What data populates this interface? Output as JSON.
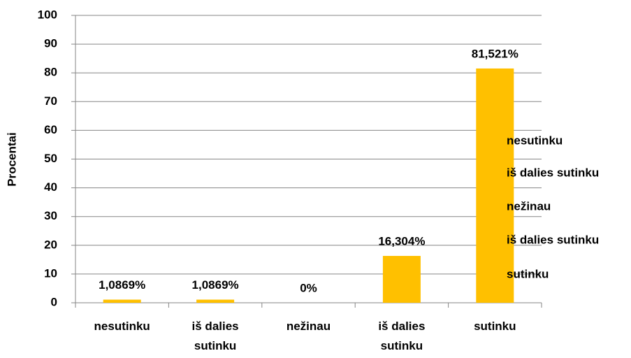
{
  "chart_data": {
    "type": "bar",
    "y_label": "Procentai",
    "categories": [
      "nesutinku",
      "iš dalies sutinku",
      "nežinau",
      "iš dalies sutinku",
      "sutinku"
    ],
    "values": [
      1.0869,
      1.0869,
      0,
      16.304,
      81.521
    ],
    "value_labels": [
      "1,0869%",
      "1,0869%",
      "0%",
      "16,304%",
      "81,521%"
    ],
    "color": "#ffc000",
    "ylim": [
      0,
      100
    ],
    "yticks": [
      0,
      10,
      20,
      30,
      40,
      50,
      60,
      70,
      80,
      90,
      100
    ],
    "grid": true,
    "legend": [
      "nesutinku",
      "iš dalies sutinku",
      "nežinau",
      "iš dalies sutinku",
      "sutinku"
    ]
  }
}
